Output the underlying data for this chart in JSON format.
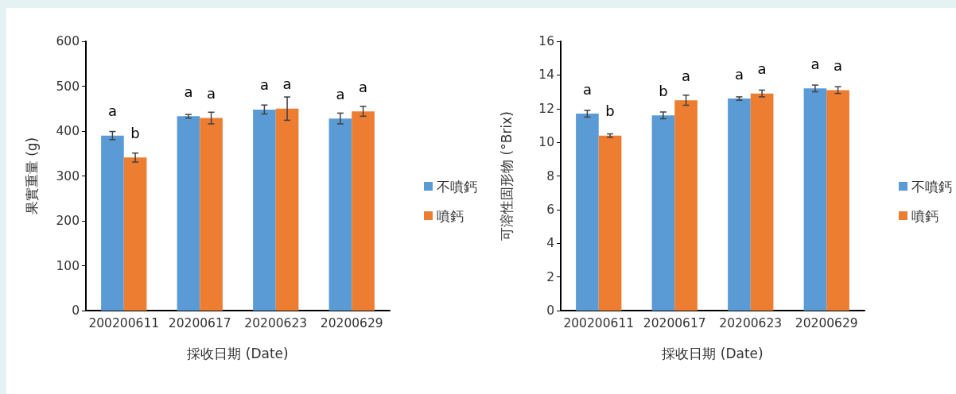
{
  "chart_data": [
    {
      "type": "bar",
      "xlabel": "採收日期 (Date)",
      "ylabel": "果實重量 (g)",
      "categories": [
        "200200611",
        "20200617",
        "20200623",
        "20200629"
      ],
      "ylim": [
        0,
        600
      ],
      "yticks": [
        0,
        100,
        200,
        300,
        400,
        500,
        600
      ],
      "grid": false,
      "legend": "right",
      "series": [
        {
          "name": "不噴鈣",
          "color": "#5b9bd5",
          "values": [
            390,
            433,
            448,
            428
          ],
          "errors": [
            9,
            4,
            10,
            12
          ],
          "value_labels": [
            "a",
            "a",
            "a",
            "a"
          ]
        },
        {
          "name": "噴鈣",
          "color": "#ed7d31",
          "values": [
            341,
            429,
            450,
            444
          ],
          "errors": [
            10,
            13,
            26,
            11
          ],
          "value_labels": [
            "b",
            "a",
            "a",
            "a"
          ]
        }
      ]
    },
    {
      "type": "bar",
      "xlabel": "採收日期 (Date)",
      "ylabel": "可溶性固形物 (°Brix)",
      "categories": [
        "200200611",
        "20200617",
        "20200623",
        "20200629"
      ],
      "ylim": [
        0,
        16
      ],
      "yticks": [
        0,
        2,
        4,
        6,
        8,
        10,
        12,
        14,
        16
      ],
      "grid": false,
      "legend": "right",
      "series": [
        {
          "name": "不噴鈣",
          "color": "#5b9bd5",
          "values": [
            11.7,
            11.6,
            12.6,
            13.2
          ],
          "errors": [
            0.2,
            0.2,
            0.1,
            0.2
          ],
          "value_labels": [
            "a",
            "b",
            "a",
            "a"
          ]
        },
        {
          "name": "噴鈣",
          "color": "#ed7d31",
          "values": [
            10.4,
            12.5,
            12.9,
            13.1
          ],
          "errors": [
            0.1,
            0.3,
            0.2,
            0.2
          ],
          "value_labels": [
            "b",
            "a",
            "a",
            "a"
          ]
        }
      ]
    }
  ]
}
